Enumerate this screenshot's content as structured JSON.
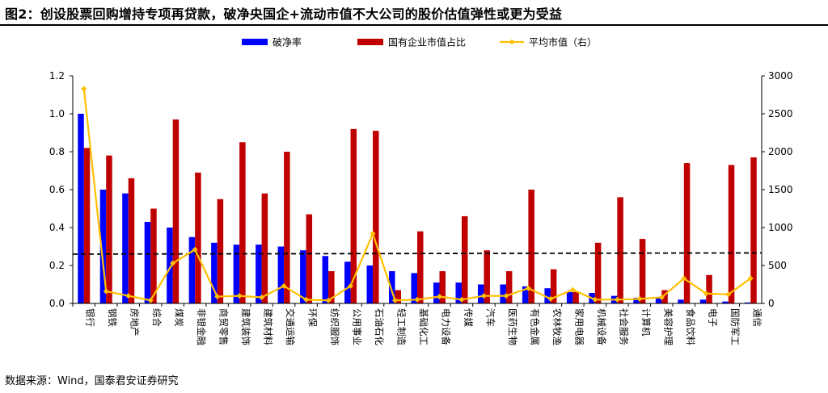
{
  "title": "图2：创设股票回购增持专项再贷款，破净央国企+流动市值不大公司的股价估值弹性或更为受益",
  "source": "数据来源：Wind，国泰君安证券研究",
  "chart_data": {
    "type": "bar",
    "categories": [
      "银行",
      "钢铁",
      "房地产",
      "综合",
      "煤炭",
      "非银金融",
      "商贸零售",
      "建筑装饰",
      "建筑材料",
      "交通运输",
      "环保",
      "纺织服饰",
      "公用事业",
      "石油石化",
      "轻工制造",
      "基础化工",
      "电力设备",
      "传媒",
      "汽车",
      "医药生物",
      "有色金属",
      "农林牧渔",
      "家用电器",
      "机械设备",
      "社会服务",
      "计算机",
      "美容护理",
      "食品饮料",
      "电子",
      "国防军工",
      "通信"
    ],
    "series": [
      {
        "name": "破净率",
        "type": "bar",
        "axis": "left",
        "color": "#0000FF",
        "values": [
          1.0,
          0.6,
          0.58,
          0.43,
          0.4,
          0.35,
          0.32,
          0.31,
          0.31,
          0.3,
          0.28,
          0.25,
          0.22,
          0.2,
          0.17,
          0.16,
          0.11,
          0.11,
          0.1,
          0.1,
          0.09,
          0.08,
          0.06,
          0.055,
          0.04,
          0.03,
          0.03,
          0.02,
          0.02,
          0.01,
          0.005
        ]
      },
      {
        "name": "国有企业市值占比",
        "type": "bar",
        "axis": "left",
        "color": "#C00000",
        "values": [
          0.82,
          0.78,
          0.66,
          0.5,
          0.97,
          0.69,
          0.55,
          0.85,
          0.58,
          0.8,
          0.47,
          0.17,
          0.92,
          0.91,
          0.07,
          0.38,
          0.17,
          0.46,
          0.28,
          0.17,
          0.6,
          0.18,
          0.06,
          0.32,
          0.56,
          0.34,
          0.07,
          0.74,
          0.15,
          0.73,
          0.77
        ]
      },
      {
        "name": "平均市值（右）",
        "type": "line",
        "axis": "right",
        "color": "#FFC000",
        "values": [
          2830,
          160,
          100,
          40,
          530,
          710,
          90,
          100,
          80,
          230,
          50,
          40,
          230,
          920,
          40,
          50,
          90,
          50,
          100,
          100,
          200,
          60,
          180,
          50,
          50,
          60,
          80,
          330,
          130,
          120,
          330
        ]
      }
    ],
    "reference_line": {
      "value": 0.26,
      "axis": "left",
      "style": "dashed"
    },
    "ylim_left": [
      0,
      1.2
    ],
    "yticks_left": [
      "0.0",
      "0.2",
      "0.4",
      "0.6",
      "0.8",
      "1.0",
      "1.2"
    ],
    "ylim_right": [
      0,
      3000
    ],
    "yticks_right": [
      "0",
      "500",
      "1000",
      "1500",
      "2000",
      "2500",
      "3000"
    ],
    "grid": false,
    "legend_position": "top-center"
  }
}
